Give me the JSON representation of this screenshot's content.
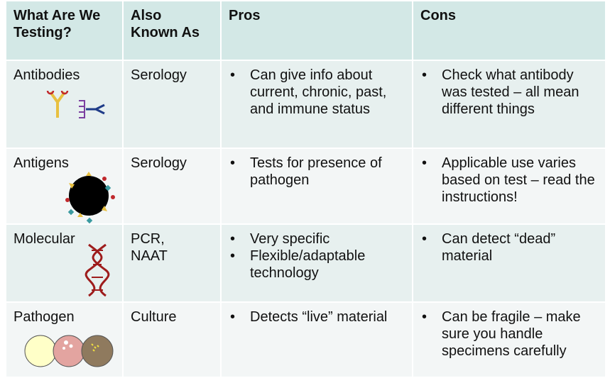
{
  "table": {
    "header": [
      "What Are We\nTesting?",
      "Also\nKnown As",
      "Pros",
      "Cons"
    ],
    "rows": [
      {
        "test": "Antibodies",
        "aka": "Serology",
        "pros": [
          "Can give info about current, chronic, past, and immune status"
        ],
        "cons": [
          "Check what antibody was tested – all mean different things"
        ]
      },
      {
        "test": "Antigens",
        "aka": "Serology",
        "pros": [
          "Tests for presence of pathogen"
        ],
        "cons": [
          "Applicable use varies based on test – read the instructions!"
        ]
      },
      {
        "test": "Molecular",
        "aka": "PCR,\nNAAT",
        "pros": [
          "Very specific",
          "Flexible/adaptable technology"
        ],
        "cons": [
          "Can detect “dead” material"
        ]
      },
      {
        "test": "Pathogen",
        "aka": "Culture",
        "pros": [
          "Detects “live” material"
        ],
        "cons": [
          "Can be fragile – make sure you handle specimens carefully"
        ]
      }
    ]
  }
}
